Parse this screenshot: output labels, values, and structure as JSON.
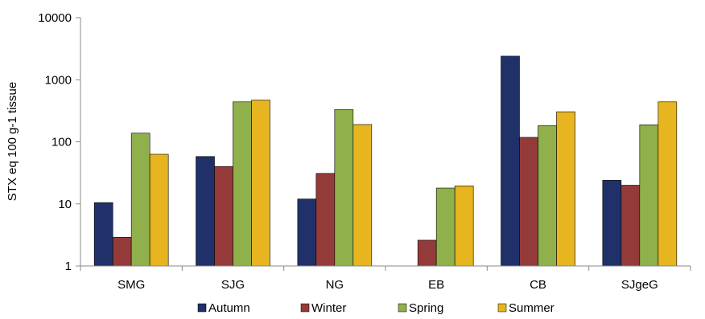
{
  "chart_data": {
    "type": "bar",
    "title": "",
    "xlabel": "",
    "ylabel": "STX eq 100 g-1 tissue",
    "y_scale": "log",
    "ylim": [
      1,
      10000
    ],
    "y_ticks": [
      1,
      10,
      100,
      1000,
      10000
    ],
    "y_tick_labels": [
      "1",
      "10",
      "100",
      "1000",
      "10000"
    ],
    "grid": false,
    "legend_position": "bottom",
    "categories": [
      "SMG",
      "SJG",
      "NG",
      "EB",
      "CB",
      "SJgeG"
    ],
    "series": [
      {
        "name": "Autumn",
        "color": "#1f3168",
        "values": [
          10.5,
          58,
          12,
          null,
          2400,
          24
        ]
      },
      {
        "name": "Winter",
        "color": "#943b3a",
        "values": [
          2.9,
          40,
          31,
          2.6,
          118,
          20
        ]
      },
      {
        "name": "Spring",
        "color": "#8fb04b",
        "values": [
          138,
          440,
          330,
          18,
          182,
          188
        ]
      },
      {
        "name": "Summer",
        "color": "#e6b520",
        "values": [
          63,
          470,
          190,
          19.5,
          305,
          440
        ]
      }
    ]
  }
}
